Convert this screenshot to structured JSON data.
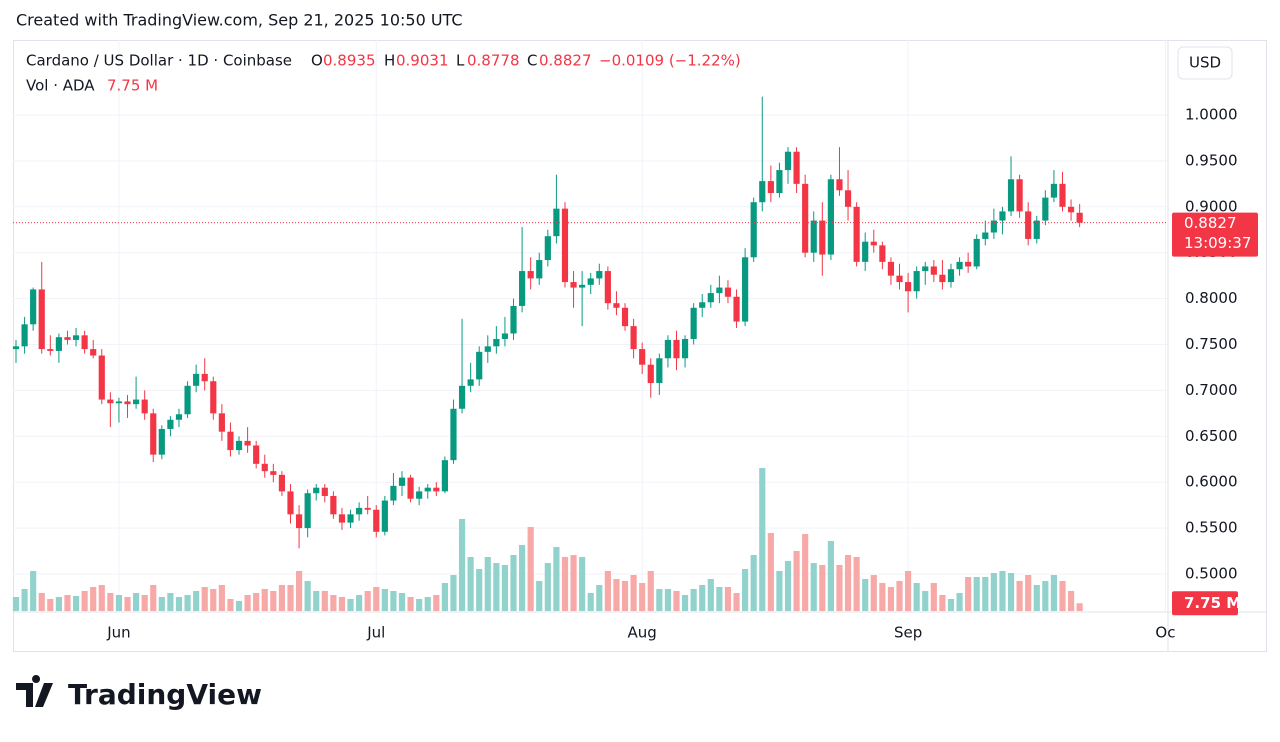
{
  "header": {
    "credit": "Created with TradingView.com, Sep 21, 2025 10:50 UTC"
  },
  "footer": {
    "logo": "TradingView"
  },
  "chart_data": {
    "type": "candlestick",
    "title": "Cardano / US Dollar · 1D · Coinbase",
    "ohlc_labels": [
      "O",
      "H",
      "L",
      "C"
    ],
    "change": "−0.0109 (−1.22%)",
    "countdown": "13:09:37",
    "currency": "USD",
    "up_color": "#089981",
    "down_color": "#f23645",
    "open": [
      0.745,
      0.748,
      0.772,
      0.81,
      0.745,
      0.743,
      0.758,
      0.755,
      0.76,
      0.745,
      0.738,
      0.69,
      0.686,
      0.688,
      0.685,
      0.69,
      0.675,
      0.63,
      0.658,
      0.668,
      0.674,
      0.705,
      0.718,
      0.71,
      0.675,
      0.655,
      0.635,
      0.645,
      0.64,
      0.62,
      0.612,
      0.608,
      0.59,
      0.565,
      0.55,
      0.588,
      0.594,
      0.585,
      0.565,
      0.556,
      0.565,
      0.572,
      0.57,
      0.546,
      0.58,
      0.596,
      0.605,
      0.582,
      0.59,
      0.594,
      0.59,
      0.624,
      0.68,
      0.705,
      0.712,
      0.742,
      0.748,
      0.756,
      0.762,
      0.792,
      0.83,
      0.822,
      0.842,
      0.868,
      0.898,
      0.818,
      0.812,
      0.815,
      0.822,
      0.83,
      0.795,
      0.79,
      0.77,
      0.745,
      0.728,
      0.708,
      0.735,
      0.755,
      0.735,
      0.756,
      0.79,
      0.796,
      0.806,
      0.812,
      0.802,
      0.775,
      0.845,
      0.905,
      0.928,
      0.915,
      0.94,
      0.96,
      0.925,
      0.85,
      0.885,
      0.848,
      0.93,
      0.918,
      0.9,
      0.84,
      0.862,
      0.858,
      0.84,
      0.825,
      0.818,
      0.808,
      0.83,
      0.835,
      0.826,
      0.818,
      0.832,
      0.84,
      0.835,
      0.865,
      0.872,
      0.885,
      0.895,
      0.93,
      0.895,
      0.865,
      0.885,
      0.91,
      0.925,
      0.9,
      0.8935
    ],
    "high": [
      0.755,
      0.78,
      0.812,
      0.84,
      0.76,
      0.762,
      0.765,
      0.768,
      0.765,
      0.755,
      0.745,
      0.698,
      0.692,
      0.695,
      0.715,
      0.7,
      0.68,
      0.662,
      0.672,
      0.68,
      0.71,
      0.728,
      0.735,
      0.715,
      0.685,
      0.665,
      0.65,
      0.66,
      0.645,
      0.63,
      0.62,
      0.612,
      0.598,
      0.575,
      0.592,
      0.598,
      0.598,
      0.59,
      0.572,
      0.57,
      0.578,
      0.585,
      0.575,
      0.585,
      0.61,
      0.612,
      0.608,
      0.595,
      0.598,
      0.6,
      0.628,
      0.69,
      0.778,
      0.73,
      0.748,
      0.76,
      0.77,
      0.78,
      0.8,
      0.878,
      0.845,
      0.85,
      0.875,
      0.935,
      0.905,
      0.83,
      0.83,
      0.828,
      0.838,
      0.835,
      0.808,
      0.795,
      0.778,
      0.752,
      0.735,
      0.74,
      0.76,
      0.765,
      0.76,
      0.795,
      0.805,
      0.815,
      0.825,
      0.82,
      0.81,
      0.855,
      0.91,
      1.02,
      0.945,
      0.948,
      0.965,
      0.965,
      0.935,
      0.895,
      0.905,
      0.935,
      0.965,
      0.94,
      0.905,
      0.872,
      0.875,
      0.862,
      0.845,
      0.838,
      0.828,
      0.835,
      0.84,
      0.842,
      0.842,
      0.838,
      0.845,
      0.85,
      0.87,
      0.885,
      0.898,
      0.9,
      0.955,
      0.935,
      0.905,
      0.89,
      0.918,
      0.94,
      0.938,
      0.908,
      0.9031
    ],
    "low": [
      0.73,
      0.74,
      0.765,
      0.74,
      0.738,
      0.73,
      0.75,
      0.748,
      0.74,
      0.735,
      0.685,
      0.66,
      0.665,
      0.67,
      0.68,
      0.668,
      0.622,
      0.625,
      0.65,
      0.66,
      0.67,
      0.698,
      0.7,
      0.668,
      0.645,
      0.628,
      0.63,
      0.632,
      0.615,
      0.605,
      0.6,
      0.585,
      0.555,
      0.528,
      0.54,
      0.58,
      0.578,
      0.56,
      0.548,
      0.55,
      0.558,
      0.565,
      0.54,
      0.542,
      0.575,
      0.585,
      0.578,
      0.575,
      0.582,
      0.585,
      0.588,
      0.62,
      0.675,
      0.698,
      0.705,
      0.73,
      0.74,
      0.748,
      0.755,
      0.785,
      0.81,
      0.815,
      0.835,
      0.86,
      0.812,
      0.79,
      0.77,
      0.805,
      0.815,
      0.788,
      0.782,
      0.765,
      0.735,
      0.718,
      0.692,
      0.695,
      0.725,
      0.722,
      0.725,
      0.75,
      0.78,
      0.79,
      0.795,
      0.795,
      0.768,
      0.77,
      0.84,
      0.895,
      0.905,
      0.91,
      0.925,
      0.915,
      0.845,
      0.84,
      0.825,
      0.842,
      0.912,
      0.885,
      0.835,
      0.83,
      0.85,
      0.832,
      0.815,
      0.81,
      0.785,
      0.8,
      0.815,
      0.818,
      0.81,
      0.812,
      0.825,
      0.828,
      0.832,
      0.858,
      0.865,
      0.87,
      0.89,
      0.888,
      0.858,
      0.86,
      0.88,
      0.905,
      0.895,
      0.885,
      0.8778
    ],
    "close": [
      0.748,
      0.772,
      0.81,
      0.745,
      0.743,
      0.758,
      0.755,
      0.76,
      0.745,
      0.738,
      0.69,
      0.686,
      0.688,
      0.685,
      0.69,
      0.675,
      0.63,
      0.658,
      0.668,
      0.674,
      0.705,
      0.718,
      0.71,
      0.675,
      0.655,
      0.635,
      0.645,
      0.64,
      0.62,
      0.612,
      0.608,
      0.59,
      0.565,
      0.55,
      0.588,
      0.594,
      0.585,
      0.565,
      0.556,
      0.565,
      0.572,
      0.57,
      0.546,
      0.58,
      0.596,
      0.605,
      0.582,
      0.59,
      0.594,
      0.59,
      0.624,
      0.68,
      0.705,
      0.712,
      0.742,
      0.748,
      0.756,
      0.762,
      0.792,
      0.83,
      0.822,
      0.842,
      0.868,
      0.898,
      0.818,
      0.812,
      0.815,
      0.822,
      0.83,
      0.795,
      0.79,
      0.77,
      0.745,
      0.728,
      0.708,
      0.735,
      0.755,
      0.735,
      0.756,
      0.79,
      0.796,
      0.806,
      0.812,
      0.802,
      0.775,
      0.845,
      0.905,
      0.928,
      0.915,
      0.94,
      0.96,
      0.925,
      0.85,
      0.885,
      0.848,
      0.93,
      0.918,
      0.9,
      0.84,
      0.862,
      0.858,
      0.84,
      0.825,
      0.818,
      0.808,
      0.83,
      0.835,
      0.826,
      0.818,
      0.832,
      0.84,
      0.835,
      0.865,
      0.872,
      0.885,
      0.895,
      0.93,
      0.895,
      0.865,
      0.885,
      0.91,
      0.925,
      0.9,
      0.894,
      0.8827
    ],
    "volume": {
      "name": "Vol · ADA",
      "up_color": "#92d2cc",
      "down_color": "#f7a9a7",
      "values": [
        14,
        22,
        40,
        18,
        12,
        14,
        16,
        15,
        20,
        24,
        26,
        18,
        16,
        14,
        18,
        16,
        26,
        14,
        18,
        14,
        16,
        20,
        24,
        22,
        26,
        12,
        10,
        16,
        18,
        22,
        20,
        26,
        26,
        40,
        30,
        20,
        20,
        16,
        14,
        12,
        16,
        20,
        24,
        22,
        20,
        18,
        14,
        12,
        14,
        16,
        28,
        36,
        92,
        54,
        42,
        54,
        48,
        46,
        56,
        66,
        84,
        30,
        48,
        64,
        54,
        56,
        54,
        18,
        26,
        40,
        32,
        30,
        36,
        28,
        40,
        22,
        22,
        20,
        16,
        22,
        26,
        32,
        24,
        24,
        18,
        42,
        56,
        143,
        78,
        40,
        50,
        60,
        77,
        48,
        46,
        70,
        46,
        56,
        54,
        32,
        36,
        28,
        24,
        30,
        40,
        28,
        20,
        28,
        16,
        12,
        18,
        34,
        34,
        34,
        38,
        40,
        38,
        30,
        36,
        26,
        30,
        36,
        30,
        20,
        7.75
      ],
      "value_labels": [
        null,
        null,
        null,
        null,
        null,
        null,
        null,
        null,
        null,
        null,
        null,
        null,
        null,
        null,
        null,
        null,
        null,
        null,
        null,
        null,
        null,
        null,
        null,
        null,
        null,
        null,
        null,
        null,
        null,
        null,
        null,
        null,
        null,
        null,
        null,
        null,
        null,
        null,
        null,
        null,
        null,
        null,
        null,
        null,
        null,
        null,
        null,
        null,
        null,
        null,
        null,
        null,
        null,
        null,
        null,
        null,
        null,
        null,
        null,
        null,
        null,
        null,
        null,
        null,
        null,
        null,
        null,
        null,
        null,
        null,
        null,
        null,
        null,
        null,
        null,
        null,
        null,
        null,
        null,
        null,
        null,
        null,
        null,
        null,
        null,
        null,
        null,
        null,
        null,
        null,
        null,
        null,
        null,
        null,
        null,
        null,
        null,
        null,
        null,
        null,
        null,
        null,
        null,
        null,
        null,
        null,
        null,
        null,
        null,
        null,
        null,
        null,
        null,
        null,
        null,
        null,
        null,
        null,
        null,
        null,
        null,
        null,
        null,
        null,
        "7.75 M"
      ],
      "ylim": [
        0,
        160
      ]
    },
    "ylim": [
      0.4586,
      1.0817
    ],
    "yticks": [
      {
        "value": 0.5,
        "label": "0.5000"
      },
      {
        "value": 0.55,
        "label": "0.5500"
      },
      {
        "value": 0.6,
        "label": "0.6000"
      },
      {
        "value": 0.65,
        "label": "0.6500"
      },
      {
        "value": 0.7,
        "label": "0.7000"
      },
      {
        "value": 0.75,
        "label": "0.7500"
      },
      {
        "value": 0.8,
        "label": "0.8000"
      },
      {
        "value": 0.85,
        "label": "0.8500"
      },
      {
        "value": 0.9,
        "label": "0.9000"
      },
      {
        "value": 0.95,
        "label": "0.9500"
      },
      {
        "value": 1.0,
        "label": "1.0000"
      }
    ],
    "xlim": [
      -0.35,
      134.3
    ],
    "xticks": [
      {
        "value": 12,
        "label": "Jun"
      },
      {
        "value": 42,
        "label": "Jul"
      },
      {
        "value": 73,
        "label": "Aug"
      },
      {
        "value": 104,
        "label": "Sep"
      },
      {
        "value": 134,
        "label": "Oc"
      }
    ],
    "grid": true
  }
}
